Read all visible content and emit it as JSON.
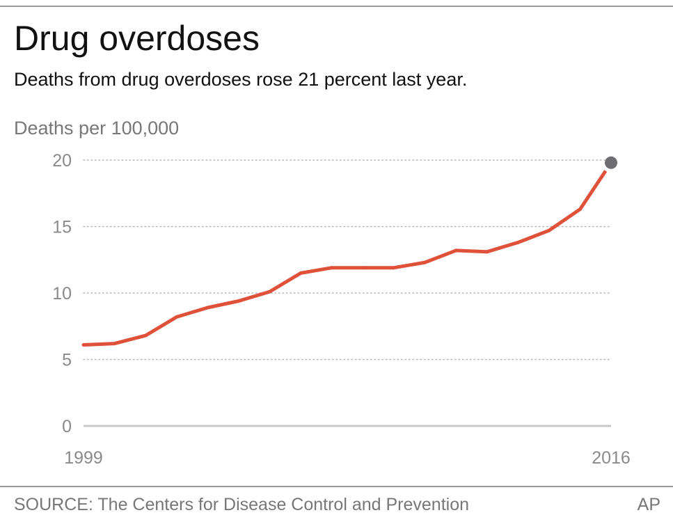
{
  "header": {
    "title": "Drug overdoses",
    "subtitle": "Deaths from drug overdoses rose 21 percent last year."
  },
  "footer": {
    "source": "SOURCE:  The Centers for Disease Control and Prevention",
    "credit": "AP"
  },
  "colors": {
    "line": "#e0513a",
    "endpoint": "#6e6e72",
    "grid": "#b5b5b5",
    "baseline": "#c8c8c8",
    "axis_text": "#8a8a8a"
  },
  "chart_data": {
    "type": "line",
    "title": "Drug overdoses",
    "subtitle": "Deaths from drug overdoses rose 21 percent last year.",
    "ylabel": "Deaths per 100,000",
    "xlabel": "",
    "x": [
      1999,
      2000,
      2001,
      2002,
      2003,
      2004,
      2005,
      2006,
      2007,
      2008,
      2009,
      2010,
      2011,
      2012,
      2013,
      2014,
      2015,
      2016
    ],
    "x_tick_labels": [
      "1999",
      "2016"
    ],
    "y_ticks": [
      0,
      5,
      10,
      15,
      20
    ],
    "y_tick_labels": [
      "0",
      "5",
      "10",
      "15",
      "20"
    ],
    "ylim": [
      0,
      20
    ],
    "grid": true,
    "series": [
      {
        "values": [
          6.1,
          6.2,
          6.8,
          8.2,
          8.9,
          9.4,
          10.1,
          11.5,
          11.9,
          11.9,
          11.9,
          12.3,
          13.2,
          13.1,
          13.8,
          14.7,
          16.3,
          19.8
        ]
      }
    ]
  }
}
